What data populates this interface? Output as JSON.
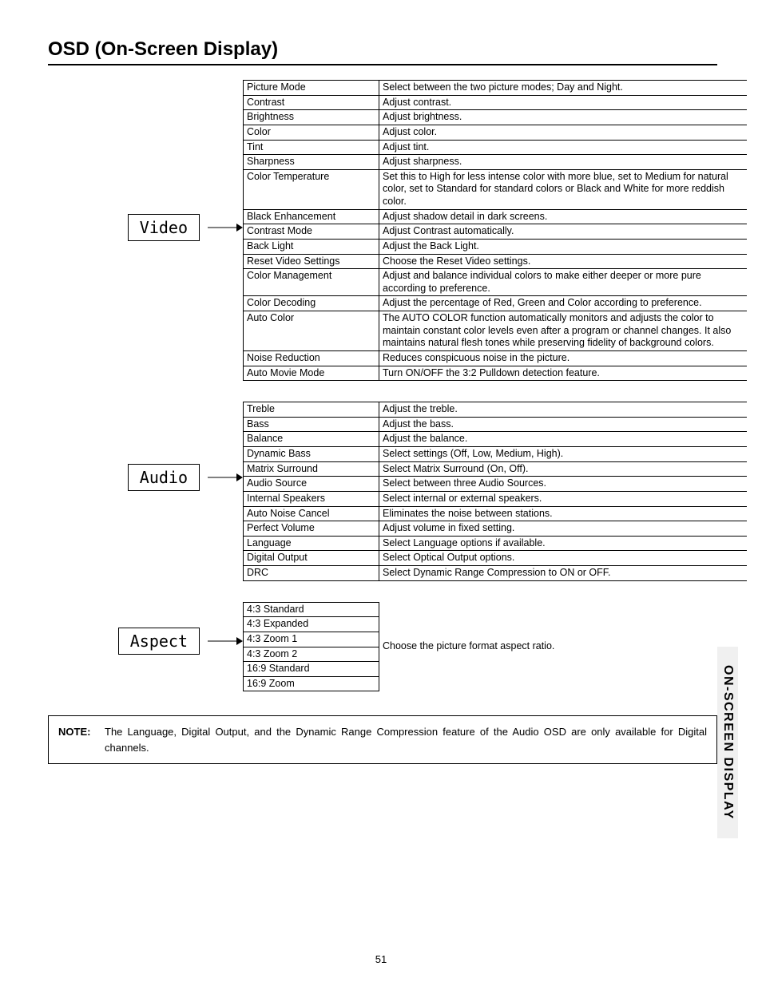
{
  "title": "OSD (On-Screen Display)",
  "sideTab": "ON-SCREEN DISPLAY",
  "pageNumber": "51",
  "note": {
    "label": "NOTE:",
    "text": "The Language, Digital Output, and the Dynamic Range Compression feature of the Audio OSD are only available for Digital channels."
  },
  "sections": {
    "video": {
      "label": "Video",
      "rows": [
        {
          "name": "Picture Mode",
          "desc": "Select between the two picture modes; Day and Night."
        },
        {
          "name": "Contrast",
          "desc": "Adjust contrast."
        },
        {
          "name": "Brightness",
          "desc": "Adjust brightness."
        },
        {
          "name": "Color",
          "desc": "Adjust color."
        },
        {
          "name": "Tint",
          "desc": "Adjust tint."
        },
        {
          "name": "Sharpness",
          "desc": "Adjust sharpness."
        },
        {
          "name": "Color Temperature",
          "desc": "Set this to High for less intense color with more blue, set to Medium for natural color, set to Standard for standard colors or Black and White for more reddish color."
        },
        {
          "name": "Black Enhancement",
          "desc": "Adjust shadow detail in dark screens."
        },
        {
          "name": "Contrast Mode",
          "desc": "Adjust Contrast automatically."
        },
        {
          "name": "Back Light",
          "desc": "Adjust the Back Light."
        },
        {
          "name": "Reset Video Settings",
          "desc": "Choose the Reset Video settings."
        },
        {
          "name": "Color Management",
          "desc": "Adjust and balance individual colors to make either deeper or more pure according to preference."
        },
        {
          "name": "Color Decoding",
          "desc": "Adjust the percentage of Red, Green and Color according to preference."
        },
        {
          "name": "Auto Color",
          "desc": "The AUTO COLOR function automatically monitors and adjusts the color to maintain constant color levels even after a program or channel changes. It also maintains natural flesh tones while preserving fidelity of background colors."
        },
        {
          "name": "Noise Reduction",
          "desc": "Reduces conspicuous noise in the picture."
        },
        {
          "name": "Auto Movie Mode",
          "desc": "Turn ON/OFF the 3:2 Pulldown detection feature."
        }
      ]
    },
    "audio": {
      "label": "Audio",
      "rows": [
        {
          "name": "Treble",
          "desc": "Adjust the treble."
        },
        {
          "name": "Bass",
          "desc": "Adjust the bass."
        },
        {
          "name": "Balance",
          "desc": "Adjust the balance."
        },
        {
          "name": "Dynamic Bass",
          "desc": "Select settings (Off, Low, Medium, High)."
        },
        {
          "name": "Matrix Surround",
          "desc": "Select Matrix Surround (On, Off)."
        },
        {
          "name": "Audio Source",
          "desc": "Select between three Audio Sources."
        },
        {
          "name": "Internal Speakers",
          "desc": "Select internal or external speakers."
        },
        {
          "name": "Auto Noise Cancel",
          "desc": "Eliminates the noise between stations."
        },
        {
          "name": "Perfect Volume",
          "desc": "Adjust volume in fixed setting."
        },
        {
          "name": "Language",
          "desc": "Select Language options if available."
        },
        {
          "name": "Digital Output",
          "desc": "Select Optical Output options."
        },
        {
          "name": "DRC",
          "desc": "Select Dynamic Range Compression to ON or OFF."
        }
      ]
    },
    "aspect": {
      "label": "Aspect",
      "desc": "Choose the picture format aspect ratio.",
      "rows": [
        {
          "name": "4:3 Standard"
        },
        {
          "name": "4:3 Expanded"
        },
        {
          "name": "4:3 Zoom 1"
        },
        {
          "name": "4:3 Zoom 2"
        },
        {
          "name": "16:9 Standard"
        },
        {
          "name": "16:9 Zoom"
        }
      ]
    }
  }
}
